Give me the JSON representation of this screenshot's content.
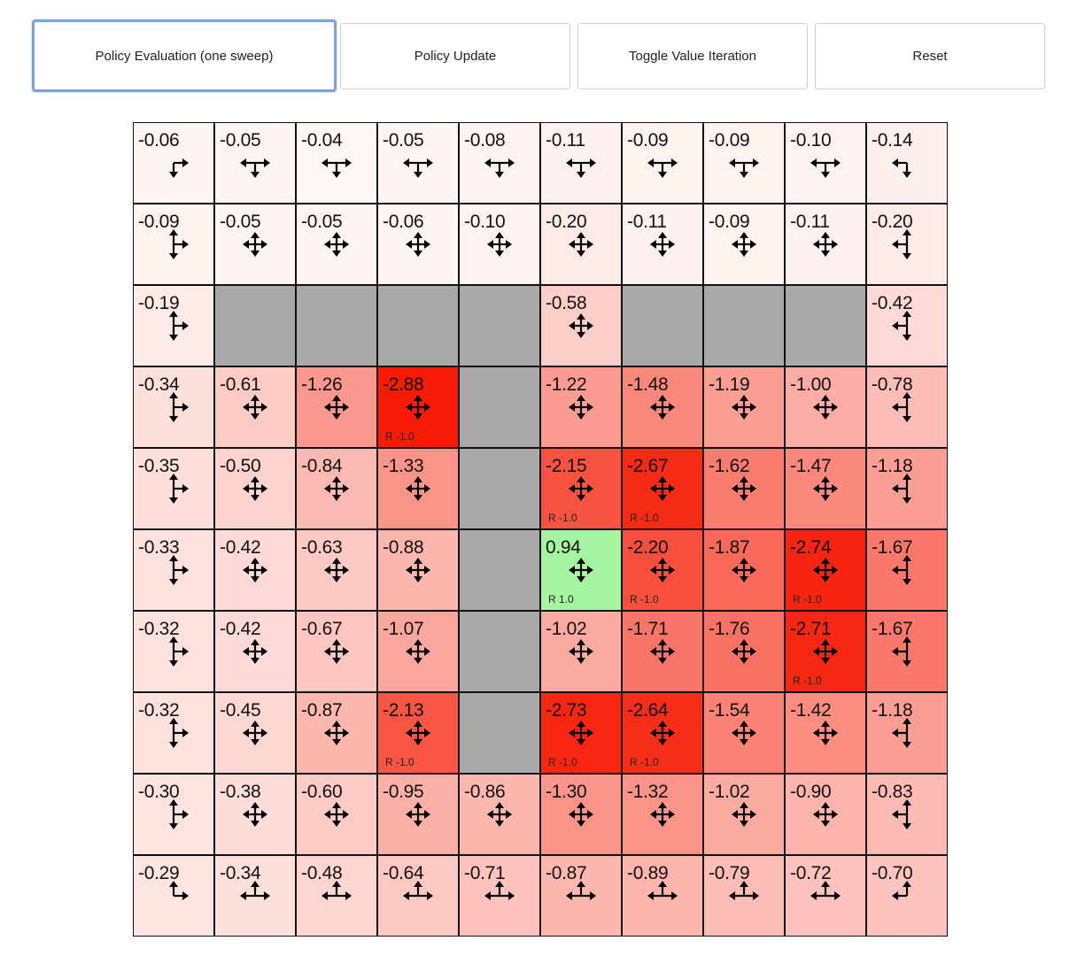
{
  "buttons": [
    {
      "label": "Policy Evaluation (one sweep)",
      "focused": true
    },
    {
      "label": "Policy Update"
    },
    {
      "label": "Toggle Value Iteration"
    },
    {
      "label": "Reset"
    }
  ],
  "colors": {
    "wall": "#a9a9a9",
    "positive": "#a6f5a0",
    "negative": "#ff2a00",
    "focus": "#7aa2e8"
  },
  "grid": {
    "values": [
      [
        -0.06,
        -0.05,
        -0.04,
        -0.05,
        -0.08,
        -0.11,
        -0.09,
        -0.09,
        -0.1,
        -0.14
      ],
      [
        -0.09,
        -0.05,
        -0.05,
        -0.06,
        -0.1,
        -0.2,
        -0.11,
        -0.09,
        -0.11,
        -0.2
      ],
      [
        -0.19,
        null,
        null,
        null,
        null,
        -0.58,
        null,
        null,
        null,
        -0.42
      ],
      [
        -0.34,
        -0.61,
        -1.26,
        -2.88,
        null,
        -1.22,
        -1.48,
        -1.19,
        -1.0,
        -0.78
      ],
      [
        -0.35,
        -0.5,
        -0.84,
        -1.33,
        null,
        -2.15,
        -2.67,
        -1.62,
        -1.47,
        -1.18
      ],
      [
        -0.33,
        -0.42,
        -0.63,
        -0.88,
        null,
        0.94,
        -2.2,
        -1.87,
        -2.74,
        -1.67
      ],
      [
        -0.32,
        -0.42,
        -0.67,
        -1.07,
        null,
        -1.02,
        -1.71,
        -1.76,
        -2.71,
        -1.67
      ],
      [
        -0.32,
        -0.45,
        -0.87,
        -2.13,
        null,
        -2.73,
        -2.64,
        -1.54,
        -1.42,
        -1.18
      ],
      [
        -0.3,
        -0.38,
        -0.6,
        -0.95,
        -0.86,
        -1.3,
        -1.32,
        -1.02,
        -0.9,
        -0.83
      ],
      [
        -0.29,
        -0.34,
        -0.48,
        -0.64,
        -0.71,
        -0.87,
        -0.89,
        -0.79,
        -0.72,
        -0.7
      ]
    ],
    "rewards": [
      {
        "row": 3,
        "col": 3,
        "label": "R -1.0"
      },
      {
        "row": 4,
        "col": 5,
        "label": "R -1.0"
      },
      {
        "row": 4,
        "col": 6,
        "label": "R -1.0"
      },
      {
        "row": 5,
        "col": 5,
        "label": "R 1.0"
      },
      {
        "row": 5,
        "col": 6,
        "label": "R -1.0"
      },
      {
        "row": 5,
        "col": 8,
        "label": "R -1.0"
      },
      {
        "row": 6,
        "col": 8,
        "label": "R -1.0"
      },
      {
        "row": 7,
        "col": 3,
        "label": "R -1.0"
      },
      {
        "row": 7,
        "col": 5,
        "label": "R -1.0"
      },
      {
        "row": 7,
        "col": 6,
        "label": "R -1.0"
      }
    ]
  }
}
